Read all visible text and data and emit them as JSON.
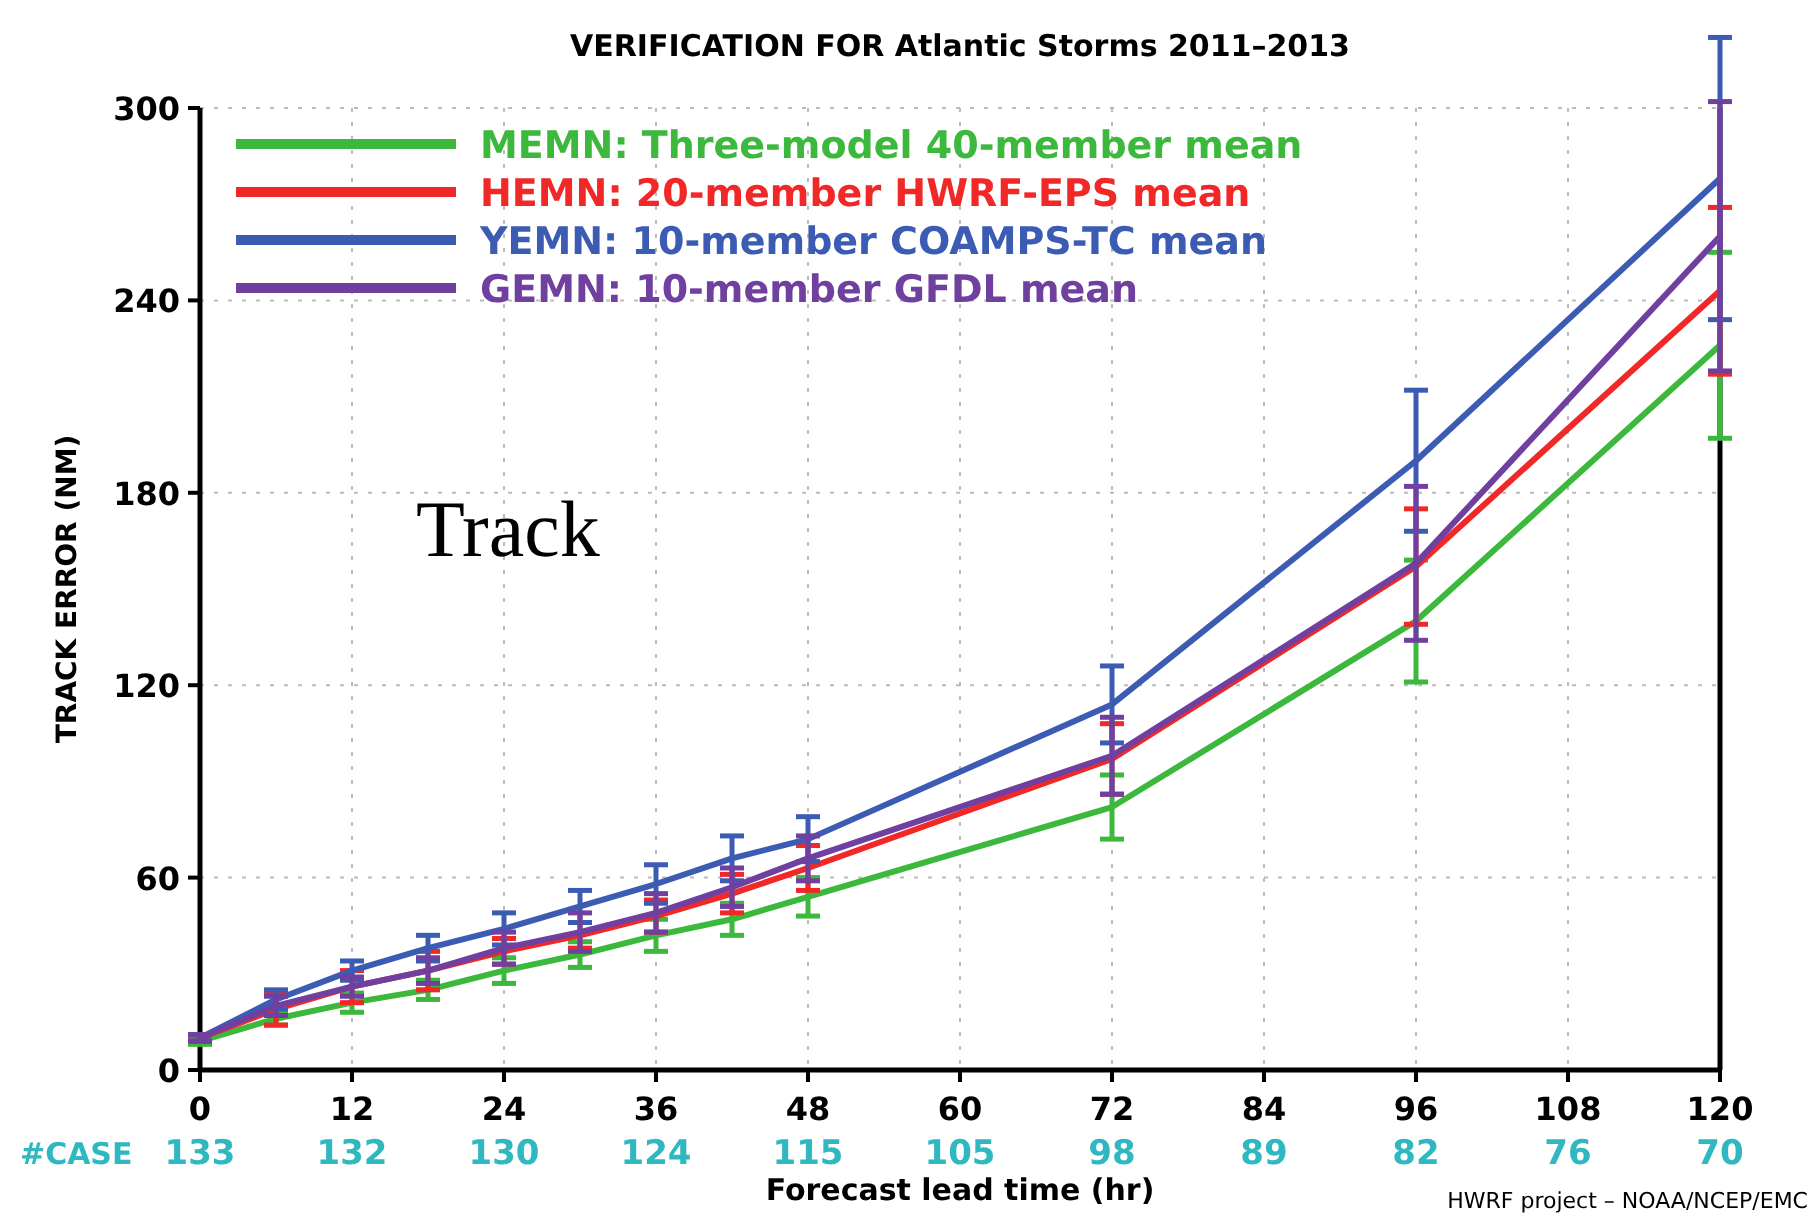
{
  "chart_data": {
    "type": "line",
    "title": "VERIFICATION FOR Atlantic Storms 2011–2013",
    "xlabel": "Forecast lead time (hr)",
    "ylabel": "TRACK ERROR (NM)",
    "x": [
      0,
      6,
      12,
      18,
      24,
      30,
      36,
      42,
      48,
      72,
      96,
      120
    ],
    "series": [
      {
        "name": "MEMN: Three-model 40-member mean",
        "color": "#3cb83c",
        "values": [
          9,
          16,
          21,
          25,
          31,
          36,
          42,
          47,
          54,
          82,
          140,
          226
        ],
        "errors": [
          1,
          2,
          3,
          3,
          4,
          4,
          5,
          5,
          6,
          10,
          19,
          29
        ]
      },
      {
        "name": "HEMN: 20-member HWRF-EPS mean",
        "color": "#f02828",
        "values": [
          10,
          19,
          26,
          31,
          37,
          42,
          48,
          55,
          63,
          97,
          157,
          243
        ],
        "errors": [
          1,
          5,
          5,
          6,
          4,
          4,
          5,
          6,
          7,
          11,
          18,
          26
        ]
      },
      {
        "name": "YEMN: 10-member COAMPS-TC mean",
        "color": "#3c5cb4",
        "values": [
          10,
          22,
          31,
          38,
          44,
          51,
          58,
          66,
          72,
          114,
          190,
          278
        ],
        "errors": [
          1,
          3,
          3,
          4,
          5,
          5,
          6,
          7,
          7,
          12,
          22,
          44
        ]
      },
      {
        "name": "GEMN: 10-member GFDL mean",
        "color": "#7040a0",
        "values": [
          10,
          20,
          26,
          31,
          38,
          43,
          49,
          57,
          66,
          98,
          158,
          260
        ],
        "errors": [
          1,
          3,
          3,
          4,
          5,
          6,
          6,
          6,
          7,
          12,
          24,
          42
        ]
      }
    ],
    "xlim": [
      0,
      120
    ],
    "xticks": [
      0,
      12,
      24,
      36,
      48,
      60,
      72,
      84,
      96,
      108,
      120
    ],
    "ylim": [
      0,
      300
    ],
    "yticks": [
      0,
      60,
      120,
      180,
      240,
      300
    ],
    "grid": true,
    "legend": "top left",
    "annotations": [
      "Track",
      "#CASE",
      "133",
      "132",
      "130",
      "124",
      "115",
      "105",
      "98",
      "89",
      "82",
      "76",
      "70",
      "HWRF project – NOAA/NCEP/EMC"
    ]
  }
}
